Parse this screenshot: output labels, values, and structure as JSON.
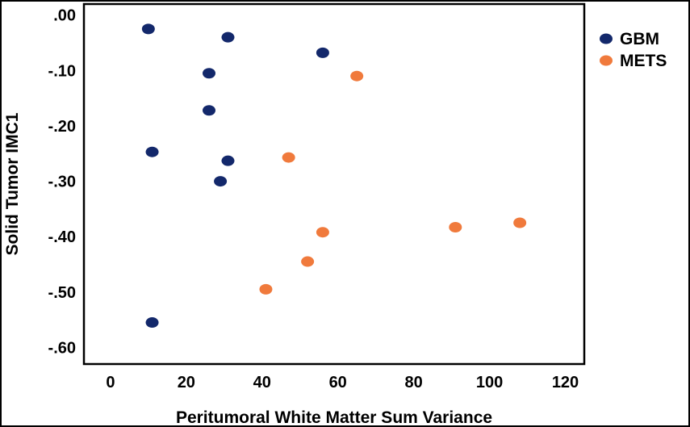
{
  "chart_data": {
    "type": "scatter",
    "xlabel": "Peritumoral White Matter Sum Variance",
    "ylabel": "Solid Tumor IMC1",
    "xlim": [
      -7,
      125
    ],
    "ylim": [
      -0.63,
      0.02
    ],
    "x_ticks": [
      {
        "value": 0,
        "label": "0"
      },
      {
        "value": 20,
        "label": "20"
      },
      {
        "value": 40,
        "label": "40"
      },
      {
        "value": 60,
        "label": "60"
      },
      {
        "value": 80,
        "label": "80"
      },
      {
        "value": 100,
        "label": "100"
      },
      {
        "value": 120,
        "label": "120"
      }
    ],
    "y_ticks": [
      {
        "value": 0.0,
        "label": ".00"
      },
      {
        "value": -0.1,
        "label": "-.10"
      },
      {
        "value": -0.2,
        "label": "-.20"
      },
      {
        "value": -0.3,
        "label": "-.30"
      },
      {
        "value": -0.4,
        "label": "-.40"
      },
      {
        "value": -0.5,
        "label": "-.50"
      },
      {
        "value": -0.6,
        "label": "-.60"
      }
    ],
    "grid": false,
    "legend_position": "top-right, outside plot",
    "series": [
      {
        "name": "GBM",
        "color": "#13286b",
        "points": [
          {
            "x": 10,
            "y": -0.025
          },
          {
            "x": 31,
            "y": -0.04
          },
          {
            "x": 56,
            "y": -0.068
          },
          {
            "x": 26,
            "y": -0.105
          },
          {
            "x": 26,
            "y": -0.172
          },
          {
            "x": 11,
            "y": -0.247
          },
          {
            "x": 31,
            "y": -0.263
          },
          {
            "x": 29,
            "y": -0.3
          },
          {
            "x": 11,
            "y": -0.555
          }
        ]
      },
      {
        "name": "METS",
        "color": "#f07a3c",
        "points": [
          {
            "x": 65,
            "y": -0.11
          },
          {
            "x": 47,
            "y": -0.257
          },
          {
            "x": 56,
            "y": -0.392
          },
          {
            "x": 52,
            "y": -0.445
          },
          {
            "x": 41,
            "y": -0.495
          },
          {
            "x": 91,
            "y": -0.383
          },
          {
            "x": 108,
            "y": -0.375
          }
        ]
      }
    ]
  }
}
